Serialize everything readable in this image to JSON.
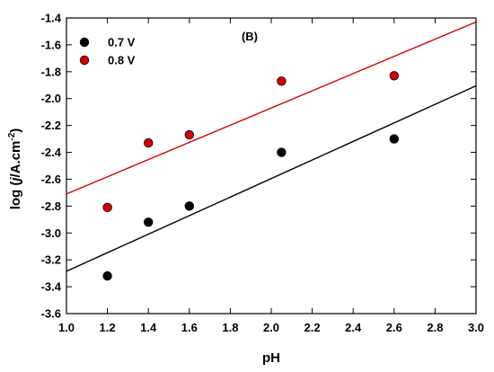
{
  "chart_data": {
    "type": "scatter",
    "panel_label": "(B)",
    "xlabel": "pH",
    "ylabel_parts": {
      "prefix": "log (",
      "italic": "j",
      "middle": "/A.cm",
      "superscript": "-2",
      "suffix": ")"
    },
    "xlim": [
      1.0,
      3.0
    ],
    "ylim": [
      -3.6,
      -1.4
    ],
    "xticks": [
      1.0,
      1.2,
      1.4,
      1.6,
      1.8,
      2.0,
      2.2,
      2.4,
      2.6,
      2.8,
      3.0
    ],
    "xtick_labels": [
      "1.0",
      "1.2",
      "1.4",
      "1.6",
      "1.8",
      "2.0",
      "2.2",
      "2.4",
      "2.6",
      "2.8",
      "3.0"
    ],
    "yticks": [
      -1.4,
      -1.6,
      -1.8,
      -2.0,
      -2.2,
      -2.4,
      -2.6,
      -2.8,
      -3.0,
      -3.2,
      -3.4,
      -3.6
    ],
    "ytick_labels": [
      "-1.4",
      "-1.6",
      "-1.8",
      "-2.0",
      "-2.2",
      "-2.4",
      "-2.6",
      "-2.8",
      "-3.0",
      "-3.2",
      "-3.4",
      "-3.6"
    ],
    "grid": false,
    "legend_position": "top-left",
    "series": [
      {
        "name": "0.7 V",
        "color": "#000000",
        "x": [
          1.2,
          1.4,
          1.6,
          2.05,
          2.6
        ],
        "y": [
          -3.32,
          -2.92,
          -2.8,
          -2.4,
          -2.3
        ],
        "fit": {
          "x": [
            1.0,
            3.0
          ],
          "y": [
            -3.285,
            -1.905
          ]
        }
      },
      {
        "name": "0.8 V",
        "color": "#d40000",
        "x": [
          1.2,
          1.4,
          1.6,
          2.05,
          2.6
        ],
        "y": [
          -2.81,
          -2.33,
          -2.27,
          -1.87,
          -1.83
        ],
        "fit": {
          "x": [
            1.0,
            3.0
          ],
          "y": [
            -2.71,
            -1.43
          ]
        }
      }
    ]
  }
}
